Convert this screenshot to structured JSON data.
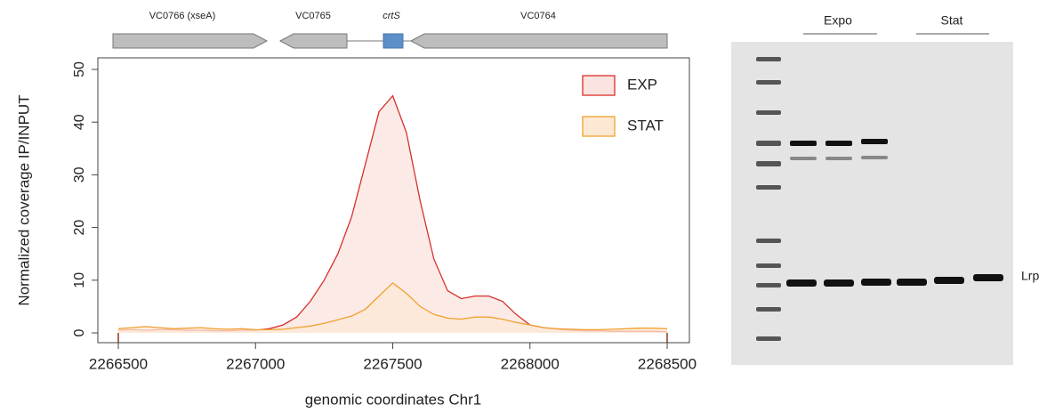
{
  "chart_data": {
    "type": "area",
    "xlabel": "genomic coordinates Chr1",
    "ylabel": "Normalized coverage IP/INPUT",
    "x": [
      2266500,
      2266550,
      2266600,
      2266650,
      2266700,
      2266750,
      2266800,
      2266850,
      2266900,
      2266950,
      2267000,
      2267050,
      2267100,
      2267150,
      2267200,
      2267250,
      2267300,
      2267350,
      2267400,
      2267450,
      2267500,
      2267550,
      2267600,
      2267650,
      2267700,
      2267750,
      2267800,
      2267850,
      2267900,
      2267950,
      2268000,
      2268050,
      2268100,
      2268150,
      2268200,
      2268250,
      2268300,
      2268350,
      2268400,
      2268450,
      2268500
    ],
    "series": [
      {
        "name": "EXP",
        "color": "#d7302b",
        "fill": "#fbe3df",
        "values": [
          0.5,
          0.6,
          0.5,
          0.6,
          0.6,
          0.5,
          0.5,
          0.4,
          0.4,
          0.5,
          0.5,
          0.8,
          1.5,
          3,
          6,
          10,
          15,
          22,
          32,
          42,
          45,
          38,
          25,
          14,
          8,
          6.5,
          7,
          7,
          6,
          3.5,
          1.5,
          1,
          0.7,
          0.5,
          0.4,
          0.4,
          0.3,
          0.3,
          0.3,
          0.3,
          0.2
        ]
      },
      {
        "name": "STAT",
        "color": "#f0a030",
        "fill": "#fde8d4",
        "values": [
          0.8,
          1,
          1.2,
          1,
          0.8,
          0.9,
          1,
          0.8,
          0.7,
          0.8,
          0.6,
          0.6,
          0.7,
          1,
          1.3,
          1.8,
          2.5,
          3.2,
          4.5,
          7,
          9.5,
          7.5,
          5,
          3.5,
          2.8,
          2.6,
          3,
          3,
          2.6,
          2,
          1.5,
          1,
          0.8,
          0.7,
          0.6,
          0.6,
          0.7,
          0.8,
          0.9,
          0.9,
          0.8
        ]
      }
    ],
    "xlim": [
      2266500,
      2268500
    ],
    "xticks": [
      2266500,
      2267000,
      2267500,
      2268000,
      2268500
    ],
    "ylim": [
      0,
      50
    ],
    "yticks": [
      0,
      10,
      20,
      30,
      40,
      50
    ],
    "legend": "top-right",
    "genes": [
      "VC0766 (xseA)",
      "VC0765",
      "crtS",
      "VC0764"
    ]
  },
  "gel": {
    "groups": [
      "Expo",
      "Stat"
    ],
    "band_label": "Lrp"
  }
}
